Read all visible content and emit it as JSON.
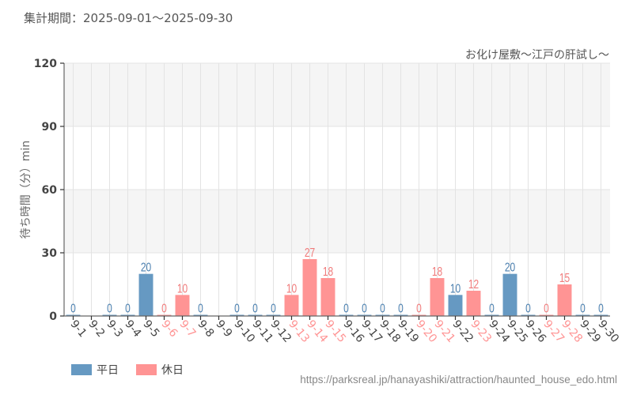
{
  "header": {
    "period": "集計期間：2025-09-01～2025-09-30",
    "subtitle": "お化け屋敷～江戸の肝試し～"
  },
  "colors": {
    "weekday": "#6699C2",
    "holiday": "#FF9494",
    "weekday_text": "#4A7FAF",
    "holiday_text": "#F07A7A"
  },
  "legend": {
    "items": [
      {
        "label": "平日",
        "color": "#6699C2"
      },
      {
        "label": "休日",
        "color": "#FF9494"
      }
    ]
  },
  "source": "https://parksreal.jp/hanayashiki/attraction/haunted_house_edo.html",
  "chart_data": {
    "type": "bar",
    "title": "お化け屋敷～江戸の肝試し～",
    "subtitle": "集計期間：2025-09-01～2025-09-30",
    "xlabel": "",
    "ylabel": "待ち時間（分）min",
    "ylim": [
      0,
      120
    ],
    "yticks": [
      0,
      30,
      60,
      90,
      120
    ],
    "grid": true,
    "legend_position": "bottom-left",
    "categories": [
      "9-1",
      "9-2",
      "9-3",
      "9-4",
      "9-5",
      "9-6",
      "9-7",
      "9-8",
      "9-9",
      "9-10",
      "9-11",
      "9-12",
      "9-13",
      "9-14",
      "9-15",
      "9-16",
      "9-17",
      "9-18",
      "9-19",
      "9-20",
      "9-21",
      "9-22",
      "9-23",
      "9-24",
      "9-25",
      "9-26",
      "9-27",
      "9-28",
      "9-29",
      "9-30"
    ],
    "values": [
      0,
      null,
      0,
      0,
      20,
      0,
      10,
      0,
      null,
      0,
      0,
      0,
      10,
      27,
      18,
      0,
      0,
      0,
      0,
      0,
      18,
      10,
      12,
      0,
      20,
      0,
      0,
      15,
      0,
      0
    ],
    "day_type": [
      "weekday",
      "weekday",
      "weekday",
      "weekday",
      "weekday",
      "holiday",
      "holiday",
      "weekday",
      "weekday",
      "weekday",
      "weekday",
      "weekday",
      "holiday",
      "holiday",
      "holiday",
      "weekday",
      "weekday",
      "weekday",
      "weekday",
      "holiday",
      "holiday",
      "weekday",
      "holiday",
      "weekday",
      "weekday",
      "weekday",
      "holiday",
      "holiday",
      "weekday",
      "weekday"
    ],
    "series": [
      {
        "name": "平日",
        "color": "#6699C2"
      },
      {
        "name": "休日",
        "color": "#FF9494"
      }
    ]
  }
}
